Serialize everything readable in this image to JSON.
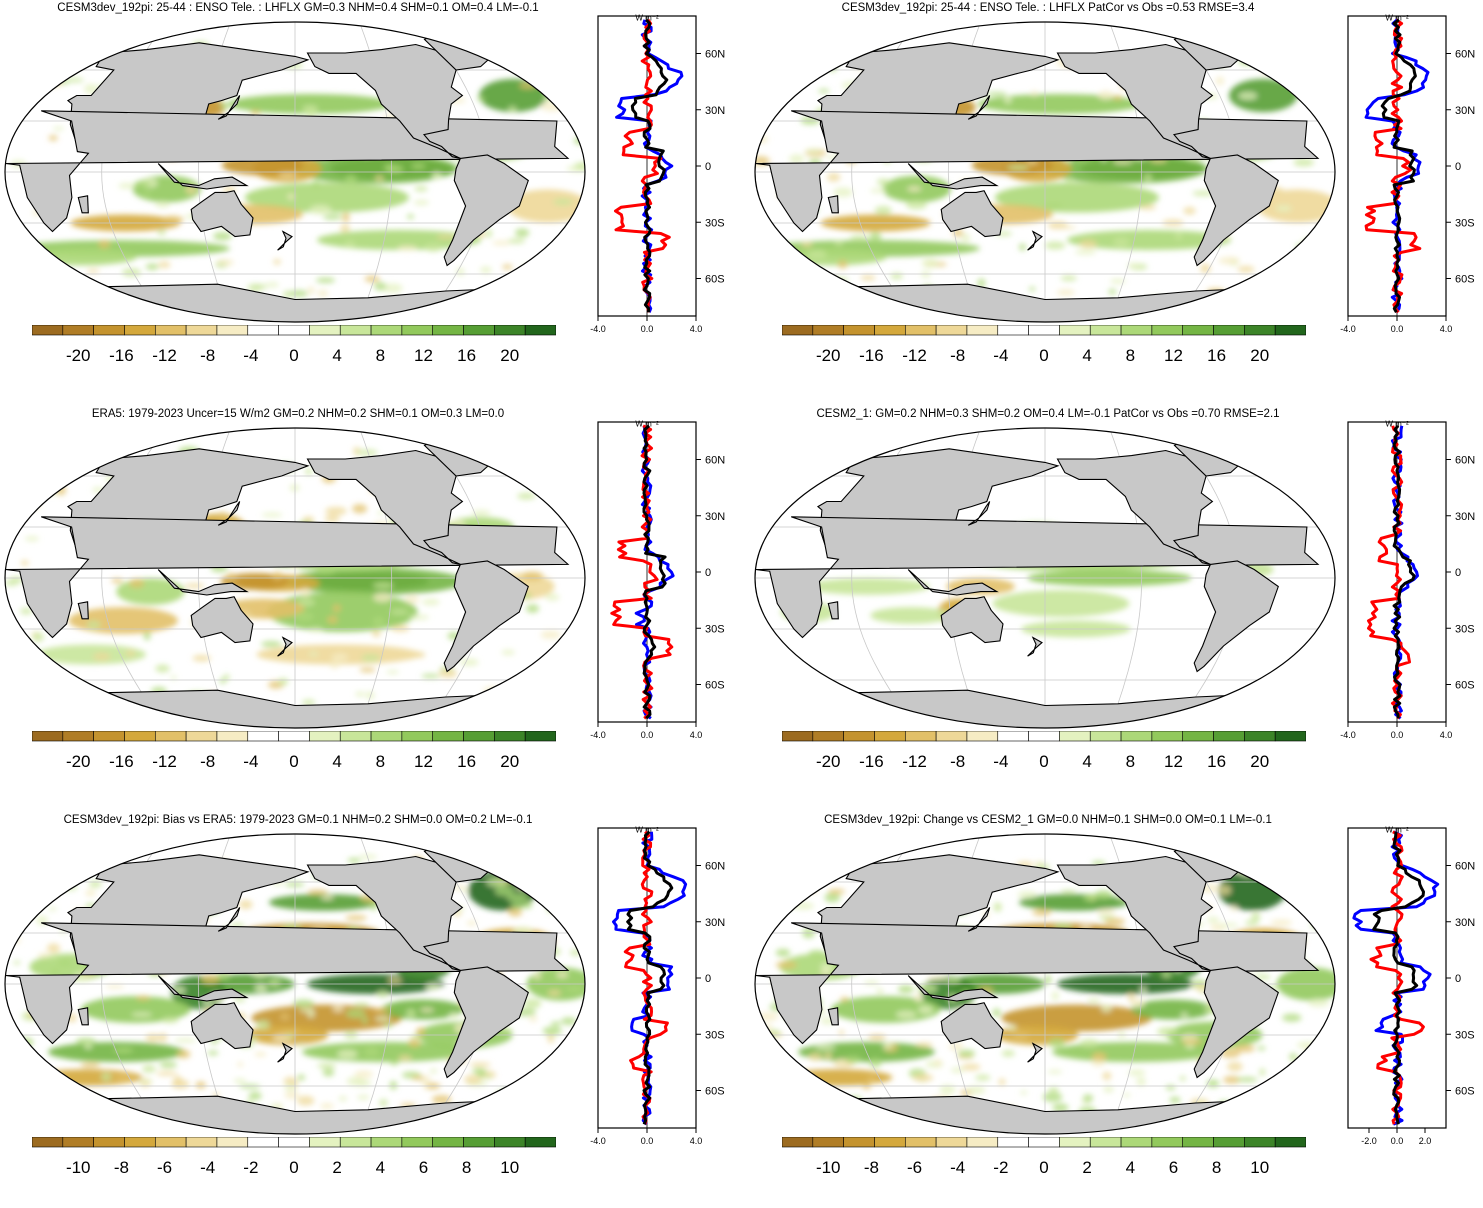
{
  "panels": [
    {
      "title": "CESM3dev_192pi: 25-44 : ENSO Tele. : LHFLX GM=0.3 NHM=0.4 SHM=0.1 OM=0.4 LM=-0.1",
      "colorbar_labels": [
        "-20",
        "-16",
        "-12",
        "-8",
        "-4",
        "0",
        "4",
        "8",
        "12",
        "16",
        "20"
      ],
      "profile_xticks": [
        "-4.0",
        "0.0",
        "4.0"
      ],
      "profile_yticks": [
        "60N",
        "30N",
        "0",
        "30S",
        "60S"
      ],
      "units": "W m⁻²",
      "pattern": "model"
    },
    {
      "title": "CESM3dev_192pi: 25-44 : ENSO Tele. : LHFLX PatCor vs Obs =0.53 RMSE=3.4",
      "colorbar_labels": [
        "-20",
        "-16",
        "-12",
        "-8",
        "-4",
        "0",
        "4",
        "8",
        "12",
        "16",
        "20"
      ],
      "profile_xticks": [
        "-4.0",
        "0.0",
        "4.0"
      ],
      "profile_yticks": [
        "60N",
        "30N",
        "0",
        "30S",
        "60S"
      ],
      "units": "W m⁻²",
      "pattern": "model"
    },
    {
      "title": "ERA5: 1979-2023 Uncer=15 W/m2 GM=0.2 NHM=0.2 SHM=0.1 OM=0.3 LM=0.0",
      "colorbar_labels": [
        "-20",
        "-16",
        "-12",
        "-8",
        "-4",
        "0",
        "4",
        "8",
        "12",
        "16",
        "20"
      ],
      "profile_xticks": [
        "-4.0",
        "0.0",
        "4.0"
      ],
      "profile_yticks": [
        "60N",
        "30N",
        "0",
        "30S",
        "60S"
      ],
      "units": "W m⁻²",
      "pattern": "obs"
    },
    {
      "title": "CESM2_1: GM=0.2 NHM=0.3 SHM=0.2 OM=0.4 LM=-0.1 PatCor vs Obs =0.70 RMSE=2.1",
      "colorbar_labels": [
        "-20",
        "-16",
        "-12",
        "-8",
        "-4",
        "0",
        "4",
        "8",
        "12",
        "16",
        "20"
      ],
      "profile_xticks": [
        "-4.0",
        "0.0",
        "4.0"
      ],
      "profile_yticks": [
        "60N",
        "30N",
        "0",
        "30S",
        "60S"
      ],
      "units": "W m⁻²",
      "pattern": "cesm2"
    },
    {
      "title": "CESM3dev_192pi: Bias vs ERA5: 1979-2023 GM=0.1 NHM=0.2 SHM=0.0 OM=0.2 LM=-0.1",
      "colorbar_labels": [
        "-10",
        "-8",
        "-6",
        "-4",
        "-2",
        "0",
        "2",
        "4",
        "6",
        "8",
        "10"
      ],
      "profile_xticks": [
        "-4.0",
        "0.0",
        "4.0"
      ],
      "profile_yticks": [
        "60N",
        "30N",
        "0",
        "30S",
        "60S"
      ],
      "units": "W m⁻²",
      "pattern": "bias"
    },
    {
      "title": "CESM3dev_192pi: Change vs CESM2_1 GM=0.0 NHM=0.1 SHM=0.0 OM=0.1 LM=-0.1",
      "colorbar_labels": [
        "-10",
        "-8",
        "-6",
        "-4",
        "-2",
        "0",
        "2",
        "4",
        "6",
        "8",
        "10"
      ],
      "profile_xticks": [
        "-2.0",
        "0.0",
        "2.0"
      ],
      "profile_yticks": [
        "60N",
        "30N",
        "0",
        "30S",
        "60S"
      ],
      "units": "W m⁻²",
      "pattern": "bias"
    }
  ],
  "colors": {
    "land": "#c8c8c8",
    "palette": [
      "#9c6b20",
      "#b07d26",
      "#c4932e",
      "#d4a83c",
      "#e2c068",
      "#eed898",
      "#f6ecc4",
      "#ffffff",
      "#ffffff",
      "#e4f2c0",
      "#c8e69a",
      "#acd878",
      "#92c95c",
      "#74b544",
      "#569e34",
      "#3c8428",
      "#22661c"
    ],
    "zonal_line_colors": [
      "#0000ff",
      "#ff0000",
      "#000000"
    ]
  }
}
